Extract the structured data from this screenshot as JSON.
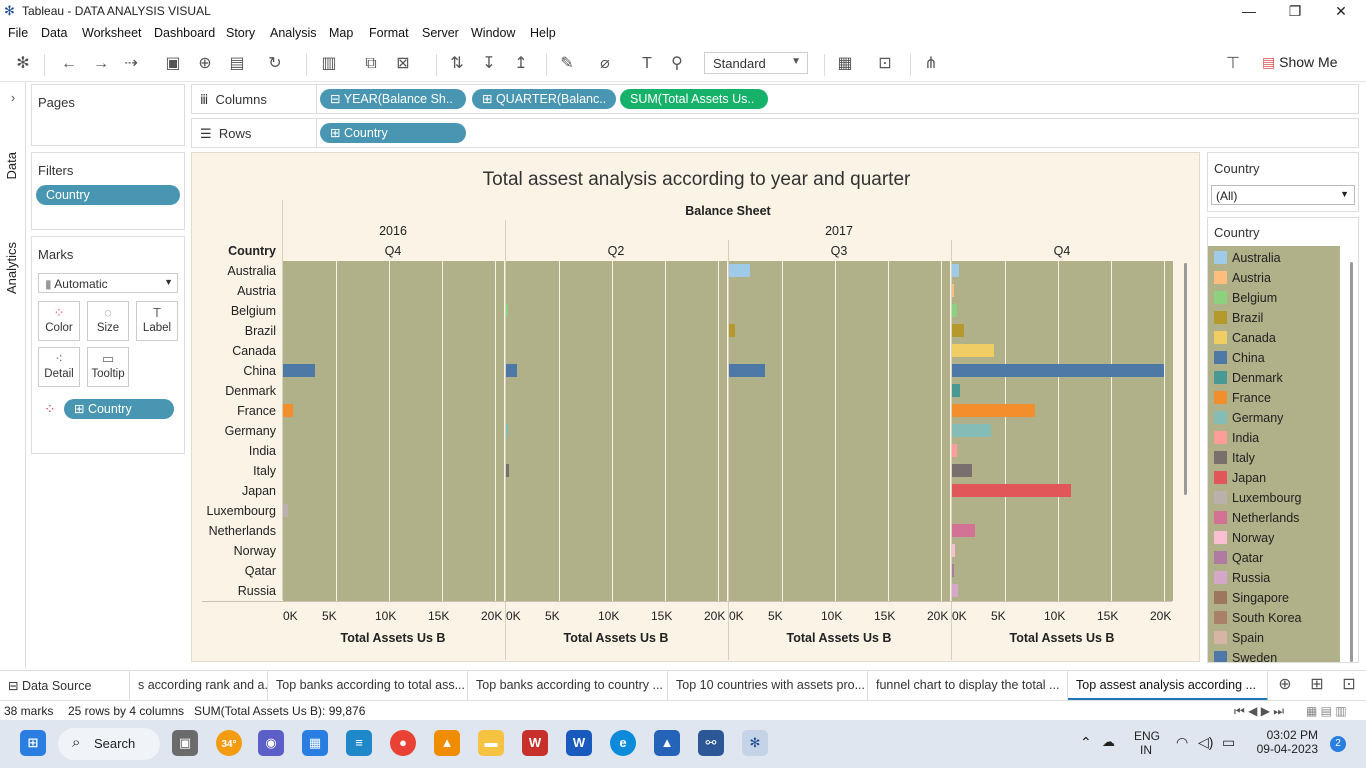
{
  "window": {
    "title": "Tableau - DATA ANALYSIS VISUAL"
  },
  "menu": [
    "File",
    "Data",
    "Worksheet",
    "Dashboard",
    "Story",
    "Analysis",
    "Map",
    "Format",
    "Server",
    "Window",
    "Help"
  ],
  "toolbar": {
    "fit": "Standard",
    "show_me": "Show Me"
  },
  "side_tabs": {
    "data": "Data",
    "analytics": "Analytics"
  },
  "pages": {
    "title": "Pages"
  },
  "filters": {
    "title": "Filters",
    "pill": "Country"
  },
  "marks": {
    "title": "Marks",
    "type": "Automatic",
    "buttons": [
      "Color",
      "Size",
      "Label",
      "Detail",
      "Tooltip"
    ],
    "pill": "Country"
  },
  "shelves": {
    "columns_label": "Columns",
    "columns": [
      "YEAR(Balance Sh..",
      "QUARTER(Balanc..",
      "SUM(Total Assets Us.."
    ],
    "rows_label": "Rows",
    "rows": [
      "Country"
    ]
  },
  "viz": {
    "title": "Total assest analysis according to year and quarter",
    "column_header": "Balance Sheet",
    "row_header": "Country",
    "years": [
      "2016",
      "2017"
    ],
    "quarters": [
      "Q4",
      "Q2",
      "Q3",
      "Q4"
    ]
  },
  "chart_data": {
    "type": "bar",
    "orientation": "horizontal",
    "title": "Total assest analysis according to year and quarter",
    "xlabel": "Total Assets Us B",
    "ylabel": "Country",
    "xlim": [
      0,
      20000
    ],
    "x_ticks": [
      "0K",
      "5K",
      "10K",
      "15K",
      "20K"
    ],
    "categories": [
      "Australia",
      "Austria",
      "Belgium",
      "Brazil",
      "Canada",
      "China",
      "Denmark",
      "France",
      "Germany",
      "India",
      "Italy",
      "Japan",
      "Luxembourg",
      "Netherlands",
      "Norway",
      "Qatar",
      "Russia"
    ],
    "panes": [
      {
        "year": "2016",
        "quarter": "Q4",
        "values": [
          0,
          0,
          0,
          0,
          0,
          3000,
          0,
          900,
          0,
          0,
          0,
          0,
          500,
          0,
          0,
          0,
          0
        ]
      },
      {
        "year": "2017",
        "quarter": "Q2",
        "values": [
          0,
          0,
          200,
          0,
          0,
          1000,
          0,
          0,
          200,
          0,
          300,
          0,
          0,
          0,
          0,
          0,
          0
        ]
      },
      {
        "year": "2017",
        "quarter": "Q3",
        "values": [
          2000,
          0,
          0,
          600,
          0,
          3400,
          0,
          0,
          0,
          0,
          0,
          0,
          0,
          0,
          0,
          0,
          0
        ]
      },
      {
        "year": "2017",
        "quarter": "Q4",
        "values": [
          700,
          200,
          500,
          1100,
          4000,
          20000,
          800,
          7800,
          3700,
          500,
          1900,
          11200,
          0,
          2200,
          300,
          100,
          600
        ]
      }
    ],
    "colors": {
      "Australia": "#a0cbe8",
      "Austria": "#ffbe7d",
      "Belgium": "#8cd17d",
      "Brazil": "#b6992d",
      "Canada": "#f1ce63",
      "China": "#4e79a7",
      "Denmark": "#499894",
      "France": "#f28e2b",
      "Germany": "#86bcb6",
      "India": "#ff9d9a",
      "Italy": "#79706e",
      "Japan": "#e15759",
      "Luxembourg": "#bab0ac",
      "Netherlands": "#d37295",
      "Norway": "#fabfd2",
      "Qatar": "#b07aa1",
      "Russia": "#d4a6c8",
      "Singapore": "#9d7660",
      "South Korea": "#a9806a",
      "Spain": "#d7b5a6",
      "Sweden": "#4e79a7"
    }
  },
  "quick_filter": {
    "title": "Country",
    "value": "(All)"
  },
  "legend": {
    "title": "Country",
    "items": [
      "Australia",
      "Austria",
      "Belgium",
      "Brazil",
      "Canada",
      "China",
      "Denmark",
      "France",
      "Germany",
      "India",
      "Italy",
      "Japan",
      "Luxembourg",
      "Netherlands",
      "Norway",
      "Qatar",
      "Russia",
      "Singapore",
      "South Korea",
      "Spain",
      "Sweden"
    ]
  },
  "sheet_tabs": [
    "Data Source",
    "s according rank and a...",
    "Top banks according to total ass...",
    "Top banks according to country ...",
    "Top 10 countries with assets pro...",
    "funnel chart to display the total ...",
    "Top assest analysis according ..."
  ],
  "status": {
    "marks": "38 marks",
    "dims": "25 rows by 4 columns",
    "sum": "SUM(Total Assets Us B): 99,876"
  },
  "taskbar": {
    "search": "Search",
    "weather": "34°",
    "lang": "ENG",
    "region": "IN",
    "time": "03:02 PM",
    "date": "09-04-2023",
    "notifications": "2"
  }
}
